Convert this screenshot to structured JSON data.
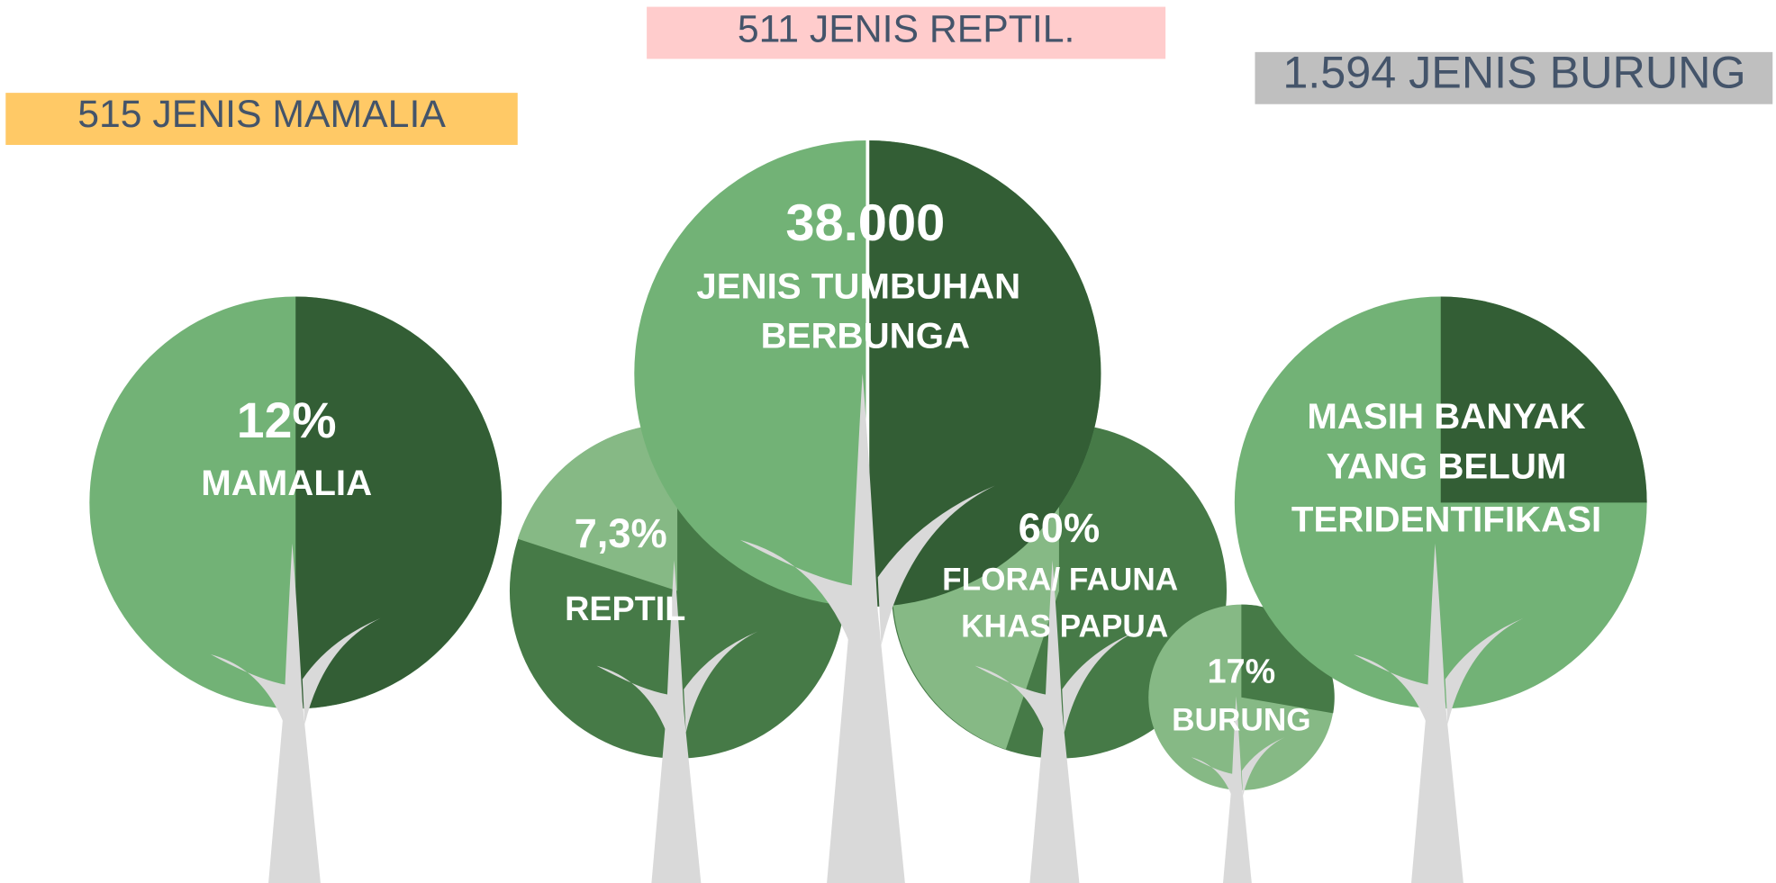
{
  "banners": [
    {
      "text": "515 JENIS MAMALIA"
    },
    {
      "text": "511 JENIS REPTIL."
    },
    {
      "text": "1.594 JENIS BURUNG"
    }
  ],
  "trees": [
    {
      "value": "12%",
      "lines": [
        "MAMALIA"
      ]
    },
    {
      "value": "7,3%",
      "lines": [
        "REPTIL"
      ]
    },
    {
      "value": "38.000",
      "lines": [
        "JENIS TUMBUHAN",
        "BERBUNGA"
      ]
    },
    {
      "value": "60%",
      "lines": [
        "FLORA/ FAUNA",
        "KHAS PAPUA"
      ]
    },
    {
      "value": "17%",
      "lines": [
        "BURUNG"
      ]
    },
    {
      "lines": [
        "MASIH BANYAK",
        "YANG BELUM",
        "TERIDENTIFIKASI"
      ]
    }
  ]
}
